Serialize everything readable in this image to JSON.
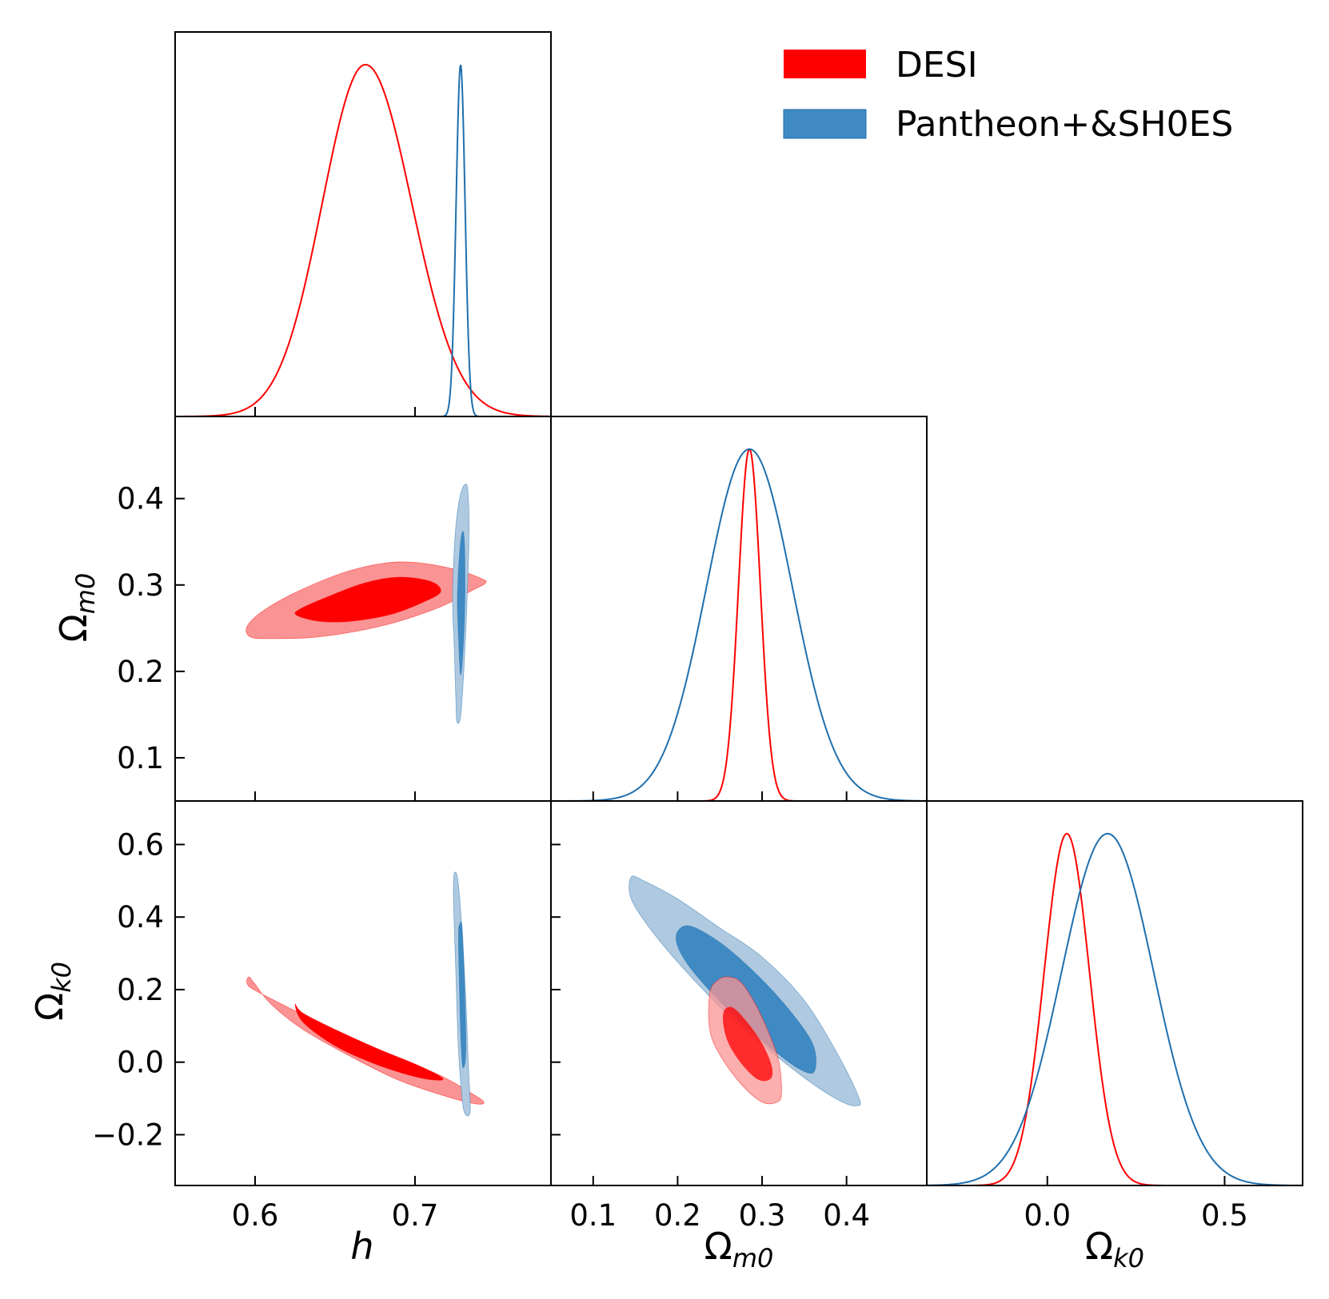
{
  "chart_data": {
    "type": "triangle-corner",
    "parameters": [
      {
        "key": "h",
        "label": "h",
        "range": [
          0.55,
          0.785
        ],
        "ticks": [
          0.6,
          0.7
        ],
        "tick_labels": [
          "0.6",
          "0.7"
        ]
      },
      {
        "key": "om",
        "label_main": "Ω",
        "label_sub": "m0",
        "range": [
          0.05,
          0.495
        ],
        "ticks": [
          0.1,
          0.2,
          0.3,
          0.4
        ],
        "tick_labels": [
          "0.1",
          "0.2",
          "0.3",
          "0.4"
        ]
      },
      {
        "key": "ok",
        "label_main": "Ω",
        "label_sub": "k0",
        "range": [
          -0.34,
          0.72
        ],
        "ticks": [
          -0.2,
          0.0,
          0.2,
          0.4,
          0.6
        ],
        "tick_labels": [
          "−0.2",
          "0.0",
          "0.2",
          "0.4",
          "0.6"
        ],
        "diag_ticks": [
          0.0,
          0.5
        ],
        "diag_tick_labels": [
          "0.0",
          "0.5"
        ]
      }
    ],
    "series": [
      {
        "name": "DESI",
        "color": "#ff0000",
        "fill_inner": "#ff0000",
        "fill_outer": "#fa9494",
        "marginals": {
          "h": {
            "mean": 0.669,
            "sigma": 0.027,
            "skew_right_sigma": 0.029
          },
          "om": {
            "mean": 0.285,
            "sigma": 0.013
          },
          "ok": {
            "mean": 0.055,
            "sigma": 0.064
          }
        },
        "contours": {
          "om_vs_h": {
            "outer": [
              [
                0.595,
                0.252
              ],
              [
                0.597,
                0.24
              ],
              [
                0.61,
                0.238
              ],
              [
                0.64,
                0.24
              ],
              [
                0.68,
                0.253
              ],
              [
                0.715,
                0.274
              ],
              [
                0.736,
                0.294
              ],
              [
                0.744,
                0.302
              ],
              [
                0.742,
                0.307
              ],
              [
                0.725,
                0.318
              ],
              [
                0.7,
                0.326
              ],
              [
                0.68,
                0.325
              ],
              [
                0.655,
                0.314
              ],
              [
                0.625,
                0.291
              ],
              [
                0.605,
                0.27
              ]
            ],
            "inner": [
              [
                0.626,
                0.265
              ],
              [
                0.64,
                0.258
              ],
              [
                0.66,
                0.258
              ],
              [
                0.685,
                0.266
              ],
              [
                0.705,
                0.28
              ],
              [
                0.716,
                0.292
              ],
              [
                0.71,
                0.304
              ],
              [
                0.69,
                0.309
              ],
              [
                0.668,
                0.302
              ],
              [
                0.645,
                0.286
              ],
              [
                0.628,
                0.272
              ]
            ]
          },
          "ok_vs_h": {
            "outer": [
              [
                0.596,
                0.235
              ],
              [
                0.596,
                0.21
              ],
              [
                0.61,
                0.175
              ],
              [
                0.64,
                0.11
              ],
              [
                0.68,
                0.03
              ],
              [
                0.715,
                -0.035
              ],
              [
                0.735,
                -0.085
              ],
              [
                0.743,
                -0.11
              ],
              [
                0.738,
                -0.115
              ],
              [
                0.72,
                -0.095
              ],
              [
                0.69,
                -0.05
              ],
              [
                0.66,
                0.015
              ],
              [
                0.63,
                0.09
              ],
              [
                0.61,
                0.16
              ],
              [
                0.6,
                0.215
              ]
            ],
            "inner": [
              [
                0.625,
                0.16
              ],
              [
                0.63,
                0.135
              ],
              [
                0.65,
                0.09
              ],
              [
                0.675,
                0.04
              ],
              [
                0.7,
                -0.005
              ],
              [
                0.716,
                -0.04
              ],
              [
                0.715,
                -0.05
              ],
              [
                0.7,
                -0.04
              ],
              [
                0.675,
                -0.005
              ],
              [
                0.65,
                0.045
              ],
              [
                0.63,
                0.11
              ]
            ]
          },
          "ok_vs_om": {
            "outer": [
              [
                0.238,
                0.19
              ],
              [
                0.247,
                0.225
              ],
              [
                0.26,
                0.235
              ],
              [
                0.275,
                0.22
              ],
              [
                0.292,
                0.16
              ],
              [
                0.308,
                0.08
              ],
              [
                0.32,
                0.0
              ],
              [
                0.323,
                -0.085
              ],
              [
                0.318,
                -0.11
              ],
              [
                0.3,
                -0.11
              ],
              [
                0.275,
                -0.06
              ],
              [
                0.25,
                0.02
              ],
              [
                0.238,
                0.09
              ]
            ],
            "inner": [
              [
                0.255,
                0.14
              ],
              [
                0.265,
                0.15
              ],
              [
                0.282,
                0.11
              ],
              [
                0.3,
                0.05
              ],
              [
                0.311,
                -0.01
              ],
              [
                0.31,
                -0.045
              ],
              [
                0.296,
                -0.048
              ],
              [
                0.278,
                -0.01
              ],
              [
                0.262,
                0.045
              ],
              [
                0.255,
                0.095
              ]
            ]
          }
        }
      },
      {
        "name": "Pantheon+&SH0ES",
        "color": "#1f6fad",
        "fill_inner": "#3f8ac3",
        "fill_outer": "#aec9e0",
        "marginals": {
          "h": {
            "mean": 0.7285,
            "sigma": 0.0028
          },
          "om": {
            "mean": 0.285,
            "sigma": 0.051
          },
          "ok": {
            "mean": 0.17,
            "sigma": 0.13
          }
        },
        "contours": {
          "om_vs_h": {
            "outer": [
              [
                0.7235,
                0.28
              ],
              [
                0.7245,
                0.23
              ],
              [
                0.7255,
                0.17
              ],
              [
                0.7262,
                0.142
              ],
              [
                0.7285,
                0.148
              ],
              [
                0.7305,
                0.2
              ],
              [
                0.7325,
                0.28
              ],
              [
                0.7338,
                0.36
              ],
              [
                0.733,
                0.41
              ],
              [
                0.731,
                0.416
              ],
              [
                0.7285,
                0.405
              ],
              [
                0.7262,
                0.38
              ],
              [
                0.7245,
                0.34
              ]
            ],
            "inner": [
              [
                0.7265,
                0.285
              ],
              [
                0.7272,
                0.24
              ],
              [
                0.7285,
                0.196
              ],
              [
                0.7302,
                0.23
              ],
              [
                0.7312,
                0.285
              ],
              [
                0.731,
                0.345
              ],
              [
                0.7298,
                0.362
              ],
              [
                0.728,
                0.34
              ]
            ],
            "inner_y_note": ""
          },
          "ok_vs_h": {
            "outer": [
              [
                0.724,
                0.47
              ],
              [
                0.7245,
                0.52
              ],
              [
                0.7265,
                0.51
              ],
              [
                0.7285,
                0.42
              ],
              [
                0.7315,
                0.2
              ],
              [
                0.7335,
                -0.02
              ],
              [
                0.7345,
                -0.135
              ],
              [
                0.731,
                -0.14
              ],
              [
                0.729,
                -0.08
              ],
              [
                0.727,
                0.05
              ],
              [
                0.7255,
                0.25
              ],
              [
                0.7245,
                0.38
              ]
            ],
            "inner": [
              [
                0.7272,
                0.35
              ],
              [
                0.728,
                0.38
              ],
              [
                0.7295,
                0.37
              ],
              [
                0.731,
                0.2
              ],
              [
                0.7318,
                0.03
              ],
              [
                0.73,
                -0.015
              ],
              [
                0.7288,
                0.05
              ],
              [
                0.7278,
                0.2
              ]
            ]
          },
          "ok_vs_om": {
            "outer": [
              [
                0.145,
                0.51
              ],
              [
                0.16,
                0.5
              ],
              [
                0.2,
                0.45
              ],
              [
                0.25,
                0.37
              ],
              [
                0.3,
                0.29
              ],
              [
                0.35,
                0.17
              ],
              [
                0.39,
                0.02
              ],
              [
                0.415,
                -0.1
              ],
              [
                0.412,
                -0.12
              ],
              [
                0.395,
                -0.11
              ],
              [
                0.36,
                -0.06
              ],
              [
                0.31,
                0.03
              ],
              [
                0.26,
                0.13
              ],
              [
                0.21,
                0.25
              ],
              [
                0.17,
                0.36
              ],
              [
                0.145,
                0.45
              ]
            ],
            "inner": [
              [
                0.2,
                0.36
              ],
              [
                0.215,
                0.375
              ],
              [
                0.25,
                0.33
              ],
              [
                0.29,
                0.25
              ],
              [
                0.33,
                0.15
              ],
              [
                0.36,
                0.05
              ],
              [
                0.362,
                -0.025
              ],
              [
                0.345,
                -0.02
              ],
              [
                0.315,
                0.03
              ],
              [
                0.28,
                0.1
              ],
              [
                0.245,
                0.18
              ],
              [
                0.215,
                0.26
              ],
              [
                0.2,
                0.32
              ]
            ]
          }
        }
      }
    ],
    "legend": {
      "placement": "top-right"
    }
  }
}
